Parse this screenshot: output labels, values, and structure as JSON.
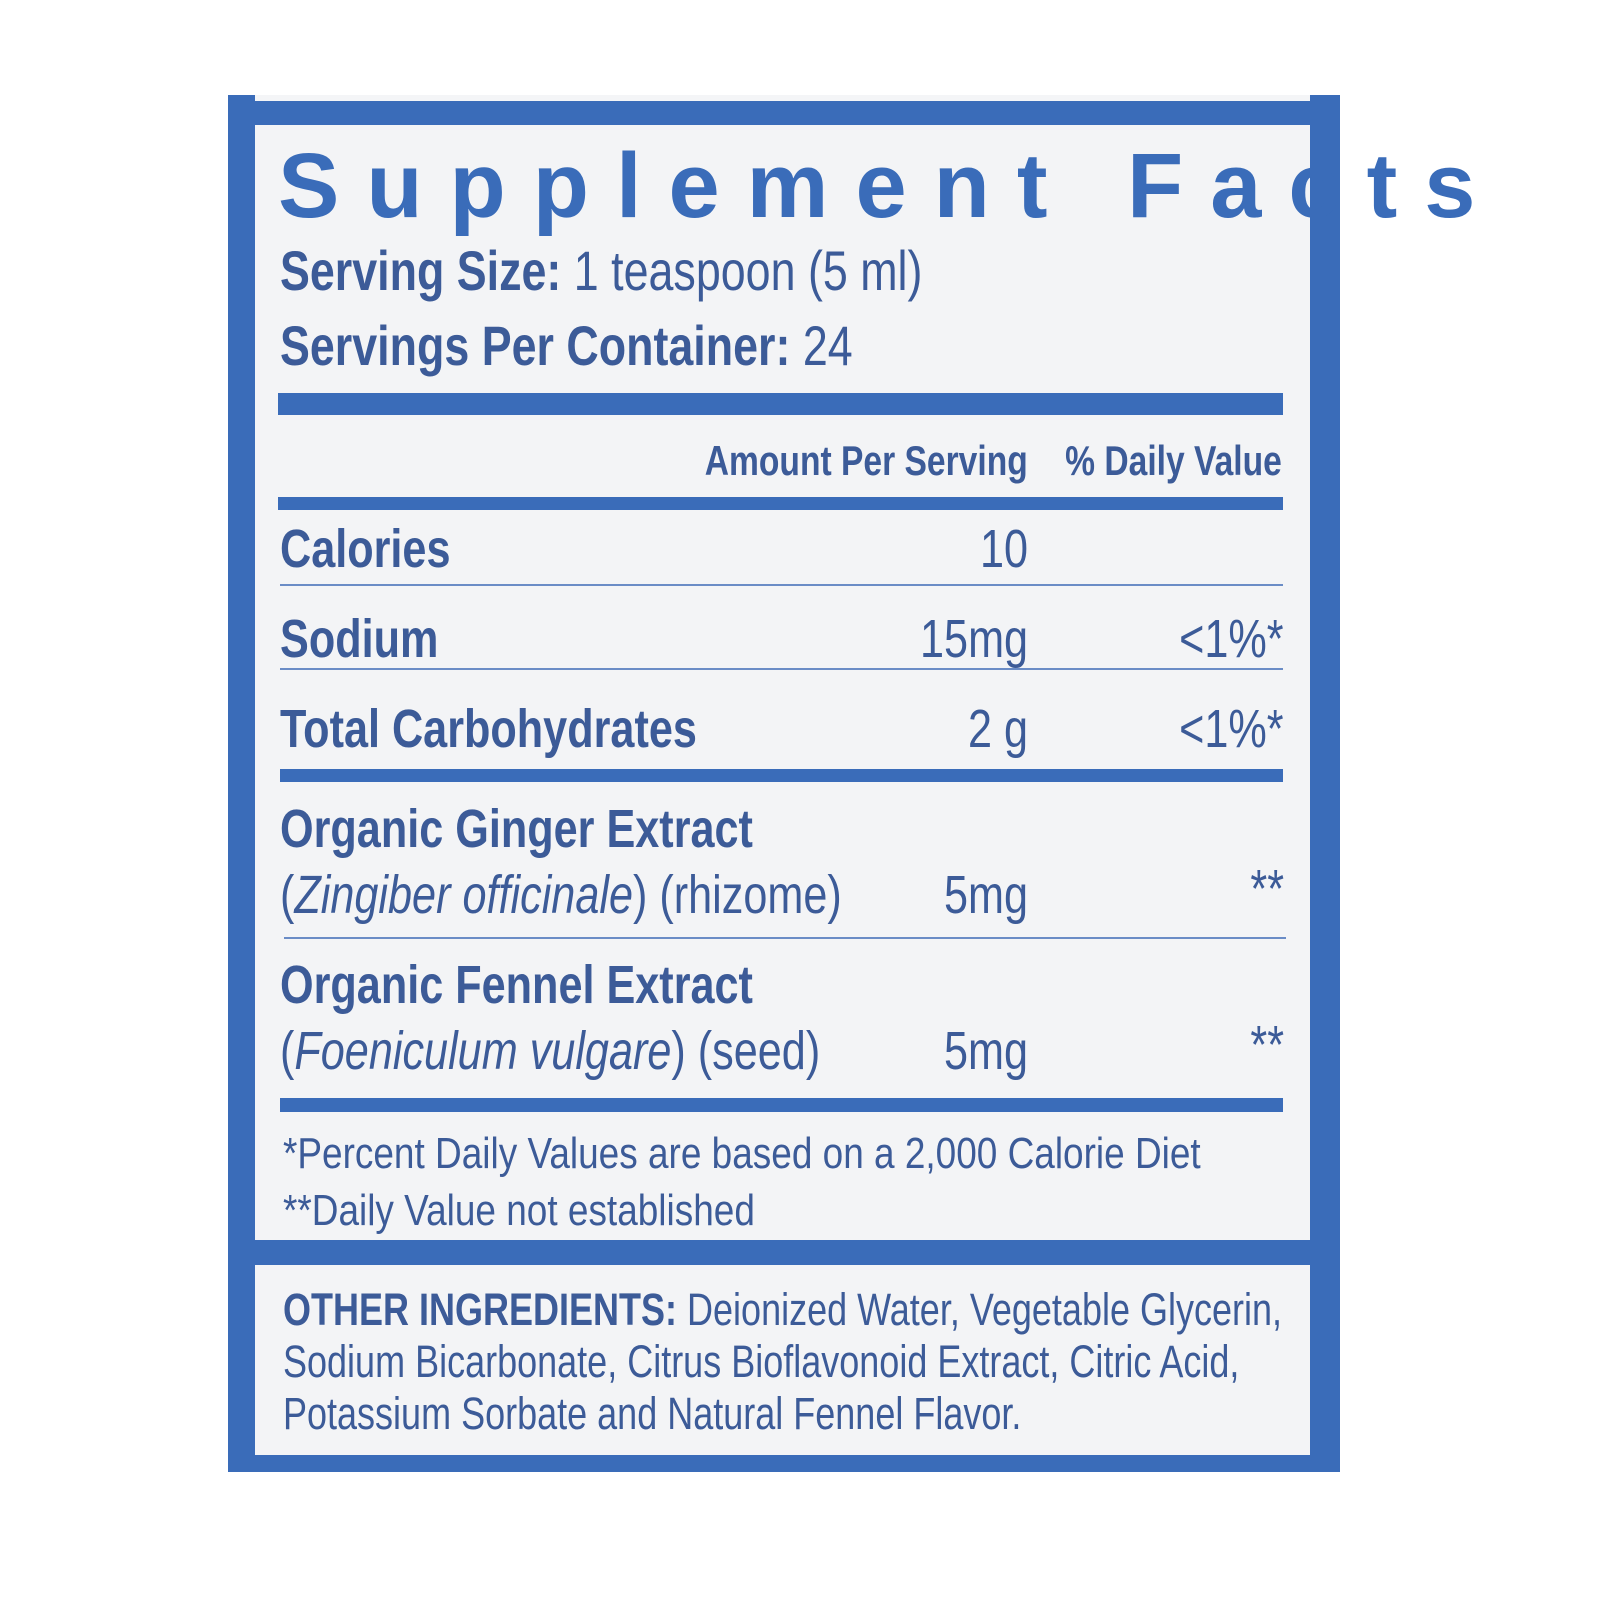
{
  "title": "Supplement Facts",
  "serving_size": {
    "label": "Serving Size:",
    "value": "1 teaspoon (5 ml)"
  },
  "servings_per_container": {
    "label": "Servings Per Container:",
    "value": "24"
  },
  "columns": {
    "amount": "Amount Per Serving",
    "dv": "% Daily Value"
  },
  "rows": [
    {
      "name": "Calories",
      "amount": "10",
      "dv": ""
    },
    {
      "name": "Sodium",
      "amount": "15mg",
      "dv": "<1%*"
    },
    {
      "name": "Total Carbohydrates",
      "amount": "2 g",
      "dv": "<1%*"
    },
    {
      "name": "Organic Ginger Extract",
      "latin": "Zingiber officinale",
      "part": "(rhizome)",
      "amount": "5mg",
      "dv": "**"
    },
    {
      "name": "Organic Fennel Extract",
      "latin": "Foeniculum vulgare",
      "part": "(seed)",
      "amount": "5mg",
      "dv": "**"
    }
  ],
  "footnotes": [
    "*Percent Daily Values are based on a 2,000 Calorie Diet",
    "**Daily Value not established"
  ],
  "other_ingredients": {
    "label": "OTHER INGREDIENTS:",
    "lines": [
      "Deionized Water, Vegetable Glycerin,",
      "Sodium Bicarbonate, Citrus Bioflavonoid Extract, Citric Acid,",
      "Potassium Sorbate and Natural Fennel Flavor."
    ]
  },
  "colors": {
    "frame": "#3a6cb9",
    "text": "#3c5b98",
    "panel": "#f3f4f6"
  }
}
